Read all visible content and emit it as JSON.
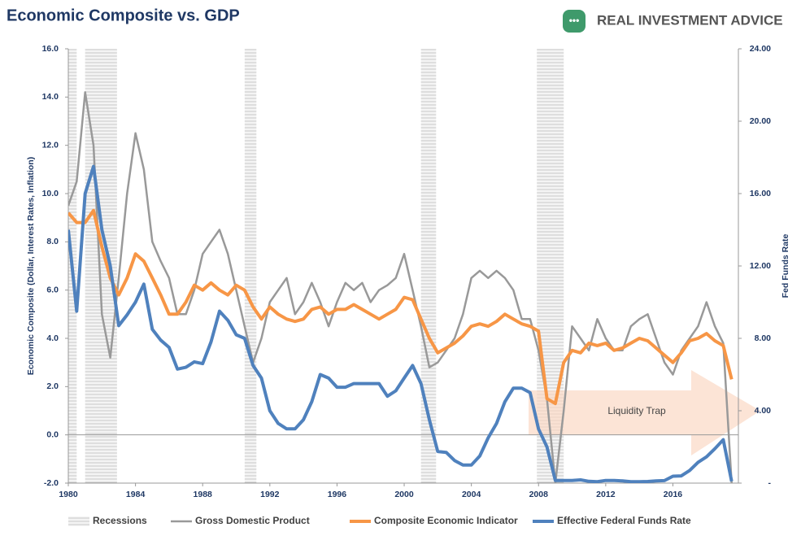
{
  "chart_data": {
    "type": "line",
    "title": "Economic Composite vs. GDP",
    "logo": "REAL INVESTMENT ADVICE",
    "y_label": "Economic Composite (Dollar, Interest Rates, Inflation)",
    "y2_label": "Fed Funds Rate",
    "x": [
      1980,
      1980.5,
      1981,
      1981.5,
      1982,
      1982.5,
      1983,
      1983.5,
      1984,
      1984.5,
      1985,
      1985.5,
      1986,
      1986.5,
      1987,
      1987.5,
      1988,
      1988.5,
      1989,
      1989.5,
      1990,
      1990.5,
      1991,
      1991.5,
      1992,
      1992.5,
      1993,
      1993.5,
      1994,
      1994.5,
      1995,
      1995.5,
      1996,
      1996.5,
      1997,
      1997.5,
      1998,
      1998.5,
      1999,
      1999.5,
      2000,
      2000.5,
      2001,
      2001.5,
      2002,
      2002.5,
      2003,
      2003.5,
      2004,
      2004.5,
      2005,
      2005.5,
      2006,
      2006.5,
      2007,
      2007.5,
      2008,
      2008.5,
      2009,
      2009.5,
      2010,
      2010.5,
      2011,
      2011.5,
      2012,
      2012.5,
      2013,
      2013.5,
      2014,
      2014.5,
      2015,
      2015.5,
      2016,
      2016.5,
      2017,
      2017.5,
      2018,
      2018.5,
      2019,
      2019.5
    ],
    "xlim": [
      1980,
      2019.9
    ],
    "xticks": [
      1980,
      1984,
      1988,
      1992,
      1996,
      2000,
      2004,
      2008,
      2012,
      2016
    ],
    "ylim": [
      -2,
      16
    ],
    "yticks": [
      {
        "value": -2,
        "label": "-2.0"
      },
      {
        "value": 0,
        "label": "0.0"
      },
      {
        "value": 2,
        "label": "2.0"
      },
      {
        "value": 4,
        "label": "4.0"
      },
      {
        "value": 6,
        "label": "6.0"
      },
      {
        "value": 8,
        "label": "8.0"
      },
      {
        "value": 10,
        "label": "10.0"
      },
      {
        "value": 12,
        "label": "12.0"
      },
      {
        "value": 14,
        "label": "14.0"
      },
      {
        "value": 16,
        "label": "16.0"
      }
    ],
    "y2lim": [
      0,
      24
    ],
    "y2ticks": [
      {
        "value": 0,
        "label": "-"
      },
      {
        "value": 4,
        "label": "4.00"
      },
      {
        "value": 8,
        "label": "8.00"
      },
      {
        "value": 12,
        "label": "12.00"
      },
      {
        "value": 16,
        "label": "16.00"
      },
      {
        "value": 20,
        "label": "20.00"
      },
      {
        "value": 24,
        "label": "24.00"
      }
    ],
    "recessions": {
      "name": "Recessions",
      "periods": [
        [
          1980,
          1980.5
        ],
        [
          1981,
          1982.9
        ],
        [
          1990.5,
          1991.2
        ],
        [
          2001,
          2001.9
        ],
        [
          2007.9,
          2009.5
        ]
      ]
    },
    "annotation": "Liquidity Trap",
    "series": [
      {
        "name": "Gross Domestic Product",
        "color": "#999999",
        "values": [
          9.5,
          10.5,
          14.2,
          12,
          5,
          3.2,
          6.5,
          10,
          12.5,
          11,
          8,
          7.2,
          6.5,
          5,
          5,
          6,
          7.5,
          8,
          8.5,
          7.5,
          6,
          4.5,
          3,
          4,
          5.5,
          6,
          6.5,
          5,
          5.5,
          6.3,
          5.5,
          4.5,
          5.5,
          6.3,
          6,
          6.3,
          5.5,
          6,
          6.2,
          6.5,
          7.5,
          6,
          4.5,
          2.8,
          3,
          3.5,
          4,
          5,
          6.5,
          6.8,
          6.5,
          6.8,
          6.5,
          6,
          4.8,
          4.8,
          3.5,
          1.5,
          -2,
          1,
          4.5,
          4,
          3.5,
          4.8,
          4,
          3.5,
          3.5,
          4.5,
          4.8,
          5,
          4,
          3,
          2.5,
          3.5,
          4,
          4.5,
          5.5,
          4.5,
          3.8,
          -2
        ]
      },
      {
        "name": "Composite Economic Indicator",
        "color": "#f79646",
        "values": [
          9.2,
          8.8,
          8.8,
          9.3,
          7.8,
          6.5,
          5.8,
          6.5,
          7.5,
          7.2,
          6.5,
          5.8,
          5,
          5,
          5.5,
          6.2,
          6,
          6.3,
          6,
          5.8,
          6.2,
          6,
          5.3,
          4.8,
          5.3,
          5,
          4.8,
          4.7,
          4.8,
          5.2,
          5.3,
          5,
          5.2,
          5.2,
          5.4,
          5.2,
          5,
          4.8,
          5,
          5.2,
          5.7,
          5.6,
          4.8,
          4,
          3.4,
          3.6,
          3.8,
          4.1,
          4.5,
          4.6,
          4.5,
          4.7,
          5,
          4.8,
          4.6,
          4.5,
          4.3,
          1.5,
          1.3,
          3,
          3.5,
          3.4,
          3.8,
          3.7,
          3.8,
          3.5,
          3.6,
          3.8,
          4,
          3.9,
          3.6,
          3.3,
          3,
          3.4,
          3.9,
          4,
          4.2,
          3.9,
          3.7,
          2.3
        ]
      },
      {
        "name": "Effective Federal Funds Rate",
        "color": "#4f81bd",
        "axis": "y2",
        "values": [
          14,
          9.5,
          16,
          17.5,
          14,
          12,
          8.7,
          9.3,
          10,
          11,
          8.5,
          7.9,
          7.5,
          6.3,
          6.4,
          6.7,
          6.6,
          7.8,
          9.5,
          9,
          8.2,
          8,
          6.5,
          5.8,
          4,
          3.3,
          3,
          3,
          3.5,
          4.5,
          6,
          5.8,
          5.3,
          5.3,
          5.5,
          5.5,
          5.5,
          5.5,
          4.8,
          5.1,
          5.8,
          6.5,
          5.5,
          3.5,
          1.75,
          1.7,
          1.25,
          1,
          1,
          1.5,
          2.5,
          3.3,
          4.5,
          5.25,
          5.25,
          5,
          3,
          2,
          0.15,
          0.15,
          0.15,
          0.18,
          0.1,
          0.08,
          0.15,
          0.15,
          0.12,
          0.08,
          0.08,
          0.09,
          0.12,
          0.14,
          0.38,
          0.4,
          0.7,
          1.15,
          1.45,
          1.9,
          2.4,
          0.1
        ]
      }
    ]
  }
}
